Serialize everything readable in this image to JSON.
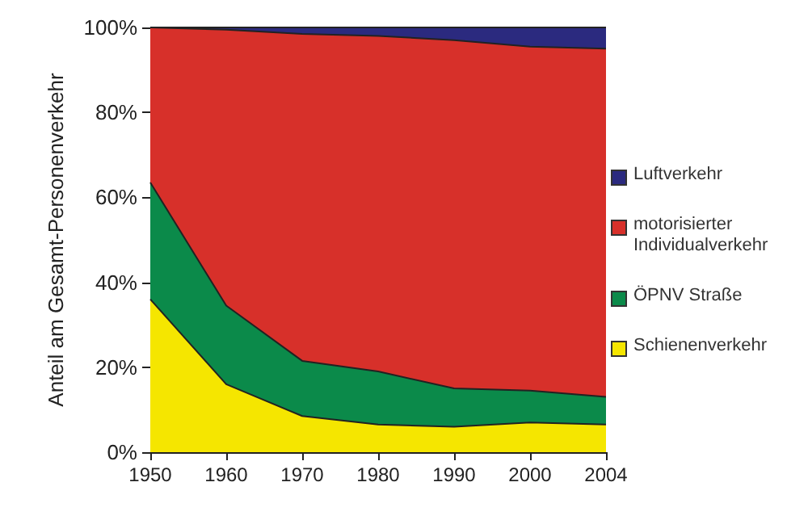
{
  "chart_data": {
    "type": "area",
    "stacked": true,
    "ylabel": "Anteil am Gesamt-Personenverkehr",
    "categories": [
      "1950",
      "1960",
      "1970",
      "1980",
      "1990",
      "2000",
      "2004"
    ],
    "ylim": [
      0,
      100
    ],
    "yticks": [
      {
        "value": 0,
        "label": "0%"
      },
      {
        "value": 20,
        "label": "20%"
      },
      {
        "value": 40,
        "label": "40%"
      },
      {
        "value": 60,
        "label": "60%"
      },
      {
        "value": 80,
        "label": "80%"
      },
      {
        "value": 100,
        "label": "100%"
      }
    ],
    "grid": false,
    "legend": "right",
    "series": [
      {
        "name": "Schienenverkehr",
        "color": "#f5e600",
        "values": [
          36,
          16,
          8.5,
          6.5,
          6,
          7,
          6.5
        ]
      },
      {
        "name": "ÖPNV Straße",
        "color": "#0b8a4a",
        "values": [
          27.5,
          18.5,
          13,
          12.5,
          9,
          7.5,
          6.5
        ]
      },
      {
        "name": "motorisierter Individualverkehr",
        "color": "#d7302a",
        "values": [
          36.5,
          65,
          77,
          79,
          82,
          81,
          82
        ]
      },
      {
        "name": "Luftverkehr",
        "color": "#2b2a7f",
        "values": [
          0,
          0.5,
          1.5,
          2,
          3,
          4.5,
          5
        ]
      }
    ]
  }
}
